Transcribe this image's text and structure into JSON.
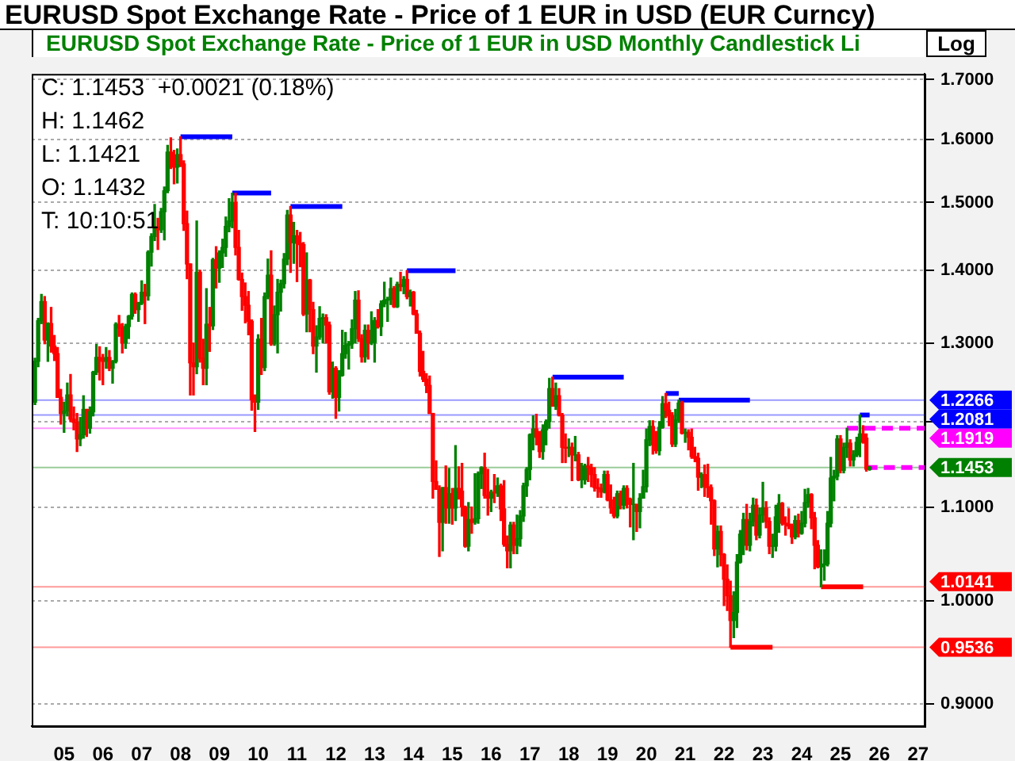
{
  "chart_data": {
    "type": "candlestick",
    "title": "EURUSD Spot Exchange Rate - Price of 1 EUR in USD (EUR Curncy)",
    "subtitle": "EURUSD Spot Exchange Rate - Price of 1 EUR in USD Monthly Candlestick  Li",
    "annotations": [
      "C: 1.1453  +0.0021 (0.18%)",
      "H: 1.1462",
      "L: 1.1421",
      "O: 1.1432",
      "T: 10:10:51",
      "Log"
    ],
    "x": [
      "2004-10",
      "2004-11",
      "2004-12",
      "2005-01",
      "2005-02",
      "2005-03",
      "2005-04",
      "2005-05",
      "2005-06",
      "2005-07",
      "2005-08",
      "2005-09",
      "2005-10",
      "2005-11",
      "2005-12",
      "2006-01",
      "2006-02",
      "2006-03",
      "2006-04",
      "2006-05",
      "2006-06",
      "2006-07",
      "2006-08",
      "2006-09",
      "2006-10",
      "2006-11",
      "2006-12",
      "2007-01",
      "2007-02",
      "2007-03",
      "2007-04",
      "2007-05",
      "2007-06",
      "2007-07",
      "2007-08",
      "2007-09",
      "2007-10",
      "2007-11",
      "2007-12",
      "2008-01",
      "2008-02",
      "2008-03",
      "2008-04",
      "2008-05",
      "2008-06",
      "2008-07",
      "2008-08",
      "2008-09",
      "2008-10",
      "2008-11",
      "2008-12",
      "2009-01",
      "2009-02",
      "2009-03",
      "2009-04",
      "2009-05",
      "2009-06",
      "2009-07",
      "2009-08",
      "2009-09",
      "2009-10",
      "2009-11",
      "2009-12",
      "2010-01",
      "2010-02",
      "2010-03",
      "2010-04",
      "2010-05",
      "2010-06",
      "2010-07",
      "2010-08",
      "2010-09",
      "2010-10",
      "2010-11",
      "2010-12",
      "2011-01",
      "2011-02",
      "2011-03",
      "2011-04",
      "2011-05",
      "2011-06",
      "2011-07",
      "2011-08",
      "2011-09",
      "2011-10",
      "2011-11",
      "2011-12",
      "2012-01",
      "2012-02",
      "2012-03",
      "2012-04",
      "2012-05",
      "2012-06",
      "2012-07",
      "2012-08",
      "2012-09",
      "2012-10",
      "2012-11",
      "2012-12",
      "2013-01",
      "2013-02",
      "2013-03",
      "2013-04",
      "2013-05",
      "2013-06",
      "2013-07",
      "2013-08",
      "2013-09",
      "2013-10",
      "2013-11",
      "2013-12",
      "2014-01",
      "2014-02",
      "2014-03",
      "2014-04",
      "2014-05",
      "2014-06",
      "2014-07",
      "2014-08",
      "2014-09",
      "2014-10",
      "2014-11",
      "2014-12",
      "2015-01",
      "2015-02",
      "2015-03",
      "2015-04",
      "2015-05",
      "2015-06",
      "2015-07",
      "2015-08",
      "2015-09",
      "2015-10",
      "2015-11",
      "2015-12",
      "2016-01",
      "2016-02",
      "2016-03",
      "2016-04",
      "2016-05",
      "2016-06",
      "2016-07",
      "2016-08",
      "2016-09",
      "2016-10",
      "2016-11",
      "2016-12",
      "2017-01",
      "2017-02",
      "2017-03",
      "2017-04",
      "2017-05",
      "2017-06",
      "2017-07",
      "2017-08",
      "2017-09",
      "2017-10",
      "2017-11",
      "2017-12",
      "2018-01",
      "2018-02",
      "2018-03",
      "2018-04",
      "2018-05",
      "2018-06",
      "2018-07",
      "2018-08",
      "2018-09",
      "2018-10",
      "2018-11",
      "2018-12",
      "2019-01",
      "2019-02",
      "2019-03",
      "2019-04",
      "2019-05",
      "2019-06",
      "2019-07",
      "2019-08",
      "2019-09",
      "2019-10",
      "2019-11",
      "2019-12",
      "2020-01",
      "2020-02",
      "2020-03",
      "2020-04",
      "2020-05",
      "2020-06",
      "2020-07",
      "2020-08",
      "2020-09",
      "2020-10",
      "2020-11",
      "2020-12",
      "2021-01",
      "2021-02",
      "2021-03",
      "2021-04",
      "2021-05",
      "2021-06",
      "2021-07",
      "2021-08",
      "2021-09",
      "2021-10",
      "2021-11",
      "2021-12",
      "2022-01",
      "2022-02",
      "2022-03",
      "2022-04",
      "2022-05",
      "2022-06",
      "2022-07",
      "2022-08",
      "2022-09",
      "2022-10",
      "2022-11",
      "2022-12",
      "2023-01",
      "2023-02",
      "2023-03",
      "2023-04",
      "2023-05",
      "2023-06",
      "2023-07",
      "2023-08",
      "2023-09",
      "2023-10",
      "2023-11",
      "2023-12",
      "2024-01",
      "2024-02",
      "2024-03",
      "2024-04",
      "2024-05",
      "2024-06",
      "2024-07",
      "2024-08",
      "2024-09",
      "2024-10",
      "2024-11",
      "2024-12",
      "2025-01",
      "2025-02",
      "2025-03",
      "2025-04",
      "2025-05",
      "2025-06",
      "2025-07",
      "2025-08",
      "2025-09",
      "2025-10",
      "2025-11",
      "2025-12",
      "2026-01",
      "2026-02",
      "2026-03",
      "2026-04"
    ],
    "ohlc": [
      [
        1.224,
        1.28,
        1.221,
        1.276
      ],
      [
        1.276,
        1.333,
        1.269,
        1.33
      ],
      [
        1.33,
        1.366,
        1.326,
        1.356
      ],
      [
        1.356,
        1.363,
        1.299,
        1.304
      ],
      [
        1.304,
        1.327,
        1.276,
        1.326
      ],
      [
        1.326,
        1.348,
        1.288,
        1.296
      ],
      [
        1.296,
        1.31,
        1.277,
        1.286
      ],
      [
        1.286,
        1.294,
        1.23,
        1.23
      ],
      [
        1.23,
        1.24,
        1.197,
        1.21
      ],
      [
        1.21,
        1.224,
        1.187,
        1.213
      ],
      [
        1.213,
        1.248,
        1.207,
        1.233
      ],
      [
        1.233,
        1.259,
        1.2,
        1.203
      ],
      [
        1.203,
        1.218,
        1.19,
        1.199
      ],
      [
        1.199,
        1.21,
        1.164,
        1.179
      ],
      [
        1.179,
        1.205,
        1.171,
        1.184
      ],
      [
        1.184,
        1.232,
        1.18,
        1.215
      ],
      [
        1.215,
        1.215,
        1.182,
        1.192
      ],
      [
        1.192,
        1.218,
        1.186,
        1.212
      ],
      [
        1.212,
        1.263,
        1.207,
        1.262
      ],
      [
        1.262,
        1.298,
        1.259,
        1.281
      ],
      [
        1.281,
        1.295,
        1.252,
        1.279
      ],
      [
        1.279,
        1.285,
        1.246,
        1.276
      ],
      [
        1.276,
        1.294,
        1.267,
        1.281
      ],
      [
        1.281,
        1.29,
        1.264,
        1.267
      ],
      [
        1.267,
        1.277,
        1.248,
        1.276
      ],
      [
        1.276,
        1.327,
        1.274,
        1.325
      ],
      [
        1.325,
        1.337,
        1.309,
        1.32
      ],
      [
        1.32,
        1.326,
        1.287,
        1.3
      ],
      [
        1.3,
        1.325,
        1.293,
        1.322
      ],
      [
        1.322,
        1.337,
        1.306,
        1.336
      ],
      [
        1.336,
        1.368,
        1.332,
        1.366
      ],
      [
        1.366,
        1.368,
        1.34,
        1.345
      ],
      [
        1.345,
        1.355,
        1.329,
        1.354
      ],
      [
        1.354,
        1.385,
        1.352,
        1.369
      ],
      [
        1.369,
        1.38,
        1.326,
        1.364
      ],
      [
        1.364,
        1.428,
        1.358,
        1.426
      ],
      [
        1.426,
        1.453,
        1.406,
        1.449
      ],
      [
        1.449,
        1.497,
        1.443,
        1.463
      ],
      [
        1.463,
        1.476,
        1.43,
        1.459
      ],
      [
        1.459,
        1.491,
        1.455,
        1.486
      ],
      [
        1.486,
        1.524,
        1.444,
        1.518
      ],
      [
        1.518,
        1.59,
        1.515,
        1.579
      ],
      [
        1.579,
        1.602,
        1.553,
        1.56
      ],
      [
        1.56,
        1.582,
        1.529,
        1.555
      ],
      [
        1.555,
        1.584,
        1.53,
        1.575
      ],
      [
        1.575,
        1.6038,
        1.556,
        1.56
      ],
      [
        1.56,
        1.565,
        1.458,
        1.468
      ],
      [
        1.468,
        1.487,
        1.388,
        1.409
      ],
      [
        1.409,
        1.409,
        1.233,
        1.274
      ],
      [
        1.274,
        1.3,
        1.233,
        1.269
      ],
      [
        1.269,
        1.472,
        1.26,
        1.397
      ],
      [
        1.397,
        1.4,
        1.275,
        1.28
      ],
      [
        1.28,
        1.305,
        1.246,
        1.267
      ],
      [
        1.267,
        1.374,
        1.246,
        1.325
      ],
      [
        1.325,
        1.348,
        1.289,
        1.323
      ],
      [
        1.323,
        1.417,
        1.318,
        1.415
      ],
      [
        1.415,
        1.434,
        1.375,
        1.403
      ],
      [
        1.403,
        1.428,
        1.383,
        1.425
      ],
      [
        1.425,
        1.445,
        1.404,
        1.433
      ],
      [
        1.433,
        1.478,
        1.42,
        1.464
      ],
      [
        1.464,
        1.506,
        1.456,
        1.472
      ],
      [
        1.472,
        1.5145,
        1.462,
        1.5
      ],
      [
        1.5,
        1.514,
        1.422,
        1.433
      ],
      [
        1.433,
        1.458,
        1.386,
        1.387
      ],
      [
        1.387,
        1.396,
        1.344,
        1.363
      ],
      [
        1.363,
        1.382,
        1.327,
        1.351
      ],
      [
        1.351,
        1.37,
        1.311,
        1.329
      ],
      [
        1.329,
        1.331,
        1.214,
        1.227
      ],
      [
        1.227,
        1.233,
        1.188,
        1.224
      ],
      [
        1.224,
        1.311,
        1.215,
        1.305
      ],
      [
        1.305,
        1.333,
        1.259,
        1.268
      ],
      [
        1.268,
        1.368,
        1.264,
        1.363
      ],
      [
        1.363,
        1.416,
        1.36,
        1.393
      ],
      [
        1.393,
        1.428,
        1.297,
        1.299
      ],
      [
        1.299,
        1.35,
        1.297,
        1.338
      ],
      [
        1.338,
        1.387,
        1.287,
        1.369
      ],
      [
        1.369,
        1.386,
        1.343,
        1.381
      ],
      [
        1.381,
        1.424,
        1.375,
        1.416
      ],
      [
        1.416,
        1.488,
        1.408,
        1.481
      ],
      [
        1.481,
        1.494,
        1.397,
        1.44
      ],
      [
        1.44,
        1.47,
        1.41,
        1.45
      ],
      [
        1.45,
        1.458,
        1.384,
        1.439
      ],
      [
        1.439,
        1.455,
        1.405,
        1.437
      ],
      [
        1.437,
        1.44,
        1.337,
        1.339
      ],
      [
        1.339,
        1.425,
        1.315,
        1.386
      ],
      [
        1.386,
        1.387,
        1.315,
        1.345
      ],
      [
        1.345,
        1.355,
        1.286,
        1.296
      ],
      [
        1.296,
        1.323,
        1.262,
        1.308
      ],
      [
        1.308,
        1.349,
        1.305,
        1.333
      ],
      [
        1.333,
        1.339,
        1.3,
        1.334
      ],
      [
        1.334,
        1.338,
        1.3,
        1.324
      ],
      [
        1.324,
        1.328,
        1.234,
        1.237
      ],
      [
        1.237,
        1.275,
        1.229,
        1.267
      ],
      [
        1.267,
        1.269,
        1.204,
        1.23
      ],
      [
        1.23,
        1.264,
        1.213,
        1.258
      ],
      [
        1.258,
        1.317,
        1.257,
        1.286
      ],
      [
        1.286,
        1.314,
        1.28,
        1.297
      ],
      [
        1.297,
        1.302,
        1.266,
        1.299
      ],
      [
        1.299,
        1.331,
        1.293,
        1.319
      ],
      [
        1.319,
        1.37,
        1.3,
        1.358
      ],
      [
        1.358,
        1.371,
        1.302,
        1.306
      ],
      [
        1.306,
        1.311,
        1.275,
        1.282
      ],
      [
        1.282,
        1.324,
        1.275,
        1.317
      ],
      [
        1.317,
        1.324,
        1.279,
        1.3
      ],
      [
        1.3,
        1.342,
        1.298,
        1.301
      ],
      [
        1.301,
        1.334,
        1.275,
        1.33
      ],
      [
        1.33,
        1.345,
        1.32,
        1.322
      ],
      [
        1.322,
        1.357,
        1.31,
        1.353
      ],
      [
        1.353,
        1.383,
        1.349,
        1.358
      ],
      [
        1.358,
        1.362,
        1.329,
        1.359
      ],
      [
        1.359,
        1.389,
        1.352,
        1.374
      ],
      [
        1.374,
        1.377,
        1.348,
        1.349
      ],
      [
        1.349,
        1.383,
        1.348,
        1.38
      ],
      [
        1.38,
        1.397,
        1.371,
        1.377
      ],
      [
        1.377,
        1.391,
        1.367,
        1.387
      ],
      [
        1.387,
        1.3993,
        1.36,
        1.363
      ],
      [
        1.363,
        1.372,
        1.35,
        1.369
      ],
      [
        1.369,
        1.37,
        1.338,
        1.339
      ],
      [
        1.339,
        1.344,
        1.313,
        1.313
      ],
      [
        1.313,
        1.316,
        1.257,
        1.263
      ],
      [
        1.263,
        1.289,
        1.25,
        1.253
      ],
      [
        1.253,
        1.26,
        1.236,
        1.245
      ],
      [
        1.245,
        1.257,
        1.21,
        1.21
      ],
      [
        1.21,
        1.21,
        1.11,
        1.129
      ],
      [
        1.129,
        1.153,
        1.12,
        1.12
      ],
      [
        1.12,
        1.124,
        1.046,
        1.083
      ],
      [
        1.083,
        1.122,
        1.052,
        1.122
      ],
      [
        1.122,
        1.147,
        1.082,
        1.099
      ],
      [
        1.099,
        1.144,
        1.082,
        1.115
      ],
      [
        1.115,
        1.121,
        1.081,
        1.099
      ],
      [
        1.099,
        1.171,
        1.085,
        1.121
      ],
      [
        1.121,
        1.146,
        1.109,
        1.118
      ],
      [
        1.118,
        1.15,
        1.09,
        1.1
      ],
      [
        1.1,
        1.101,
        1.056,
        1.057
      ],
      [
        1.057,
        1.105,
        1.052,
        1.086
      ],
      [
        1.086,
        1.1,
        1.071,
        1.083
      ],
      [
        1.083,
        1.138,
        1.081,
        1.087
      ],
      [
        1.087,
        1.14,
        1.082,
        1.138
      ],
      [
        1.138,
        1.146,
        1.121,
        1.145
      ],
      [
        1.145,
        1.162,
        1.11,
        1.113
      ],
      [
        1.113,
        1.143,
        1.091,
        1.11
      ],
      [
        1.11,
        1.119,
        1.095,
        1.117
      ],
      [
        1.117,
        1.137,
        1.105,
        1.116
      ],
      [
        1.116,
        1.133,
        1.112,
        1.124
      ],
      [
        1.124,
        1.126,
        1.085,
        1.098
      ],
      [
        1.098,
        1.13,
        1.057,
        1.059
      ],
      [
        1.059,
        1.068,
        1.034,
        1.052
      ],
      [
        1.052,
        1.083,
        1.034,
        1.08
      ],
      [
        1.08,
        1.083,
        1.049,
        1.058
      ],
      [
        1.058,
        1.091,
        1.049,
        1.065
      ],
      [
        1.065,
        1.096,
        1.057,
        1.09
      ],
      [
        1.09,
        1.127,
        1.084,
        1.124
      ],
      [
        1.124,
        1.145,
        1.112,
        1.143
      ],
      [
        1.143,
        1.185,
        1.131,
        1.184
      ],
      [
        1.184,
        1.207,
        1.166,
        1.191
      ],
      [
        1.191,
        1.209,
        1.172,
        1.181
      ],
      [
        1.181,
        1.188,
        1.157,
        1.164
      ],
      [
        1.164,
        1.196,
        1.155,
        1.19
      ],
      [
        1.19,
        1.202,
        1.172,
        1.2
      ],
      [
        1.2,
        1.254,
        1.192,
        1.241
      ],
      [
        1.241,
        1.2556,
        1.219,
        1.219
      ],
      [
        1.219,
        1.248,
        1.215,
        1.232
      ],
      [
        1.232,
        1.241,
        1.207,
        1.208
      ],
      [
        1.208,
        1.21,
        1.151,
        1.169
      ],
      [
        1.169,
        1.185,
        1.151,
        1.168
      ],
      [
        1.168,
        1.179,
        1.158,
        1.169
      ],
      [
        1.169,
        1.174,
        1.13,
        1.16
      ],
      [
        1.16,
        1.182,
        1.153,
        1.16
      ],
      [
        1.16,
        1.163,
        1.13,
        1.131
      ],
      [
        1.131,
        1.15,
        1.122,
        1.131
      ],
      [
        1.131,
        1.149,
        1.126,
        1.147
      ],
      [
        1.147,
        1.157,
        1.129,
        1.145
      ],
      [
        1.145,
        1.149,
        1.123,
        1.137
      ],
      [
        1.137,
        1.145,
        1.118,
        1.122
      ],
      [
        1.122,
        1.132,
        1.111,
        1.121
      ],
      [
        1.121,
        1.126,
        1.111,
        1.117
      ],
      [
        1.117,
        1.141,
        1.116,
        1.137
      ],
      [
        1.137,
        1.141,
        1.107,
        1.108
      ],
      [
        1.108,
        1.125,
        1.093,
        1.099
      ],
      [
        1.099,
        1.111,
        1.088,
        1.09
      ],
      [
        1.09,
        1.118,
        1.088,
        1.115
      ],
      [
        1.115,
        1.118,
        1.098,
        1.102
      ],
      [
        1.102,
        1.124,
        1.098,
        1.121
      ],
      [
        1.121,
        1.124,
        1.099,
        1.109
      ],
      [
        1.109,
        1.11,
        1.078,
        1.103
      ],
      [
        1.103,
        1.15,
        1.064,
        1.103
      ],
      [
        1.103,
        1.103,
        1.073,
        1.095
      ],
      [
        1.095,
        1.115,
        1.077,
        1.11
      ],
      [
        1.11,
        1.142,
        1.11,
        1.123
      ],
      [
        1.123,
        1.191,
        1.117,
        1.178
      ],
      [
        1.178,
        1.201,
        1.171,
        1.194
      ],
      [
        1.194,
        1.201,
        1.161,
        1.172
      ],
      [
        1.172,
        1.188,
        1.162,
        1.165
      ],
      [
        1.165,
        1.2,
        1.16,
        1.193
      ],
      [
        1.193,
        1.231,
        1.192,
        1.222
      ],
      [
        1.222,
        1.2349,
        1.205,
        1.214
      ],
      [
        1.214,
        1.224,
        1.195,
        1.207
      ],
      [
        1.207,
        1.211,
        1.17,
        1.173
      ],
      [
        1.173,
        1.215,
        1.17,
        1.202
      ],
      [
        1.202,
        1.2266,
        1.199,
        1.223
      ],
      [
        1.223,
        1.225,
        1.185,
        1.186
      ],
      [
        1.186,
        1.191,
        1.175,
        1.187
      ],
      [
        1.187,
        1.19,
        1.166,
        1.181
      ],
      [
        1.181,
        1.191,
        1.156,
        1.158
      ],
      [
        1.158,
        1.169,
        1.152,
        1.156
      ],
      [
        1.156,
        1.162,
        1.119,
        1.134
      ],
      [
        1.134,
        1.139,
        1.122,
        1.137
      ],
      [
        1.137,
        1.148,
        1.112,
        1.123
      ],
      [
        1.123,
        1.149,
        1.111,
        1.122
      ],
      [
        1.122,
        1.125,
        1.081,
        1.107
      ],
      [
        1.107,
        1.108,
        1.047,
        1.054
      ],
      [
        1.054,
        1.079,
        1.035,
        1.073
      ],
      [
        1.073,
        1.079,
        1.036,
        1.048
      ],
      [
        1.048,
        1.049,
        0.995,
        1.022
      ],
      [
        1.022,
        1.037,
        0.99,
        1.005
      ],
      [
        1.005,
        1.02,
        0.9536,
        0.98
      ],
      [
        0.98,
        1.009,
        0.963,
        0.988
      ],
      [
        0.988,
        1.048,
        0.973,
        1.04
      ],
      [
        1.04,
        1.074,
        1.039,
        1.07
      ],
      [
        1.07,
        1.093,
        1.048,
        1.086
      ],
      [
        1.086,
        1.103,
        1.053,
        1.058
      ],
      [
        1.058,
        1.093,
        1.052,
        1.084
      ],
      [
        1.084,
        1.11,
        1.079,
        1.102
      ],
      [
        1.102,
        1.109,
        1.064,
        1.069
      ],
      [
        1.069,
        1.099,
        1.066,
        1.091
      ],
      [
        1.091,
        1.128,
        1.083,
        1.099
      ],
      [
        1.099,
        1.106,
        1.077,
        1.084
      ],
      [
        1.084,
        1.088,
        1.049,
        1.057
      ],
      [
        1.057,
        1.07,
        1.045,
        1.057
      ],
      [
        1.057,
        1.102,
        1.052,
        1.089
      ],
      [
        1.089,
        1.114,
        1.072,
        1.104
      ],
      [
        1.104,
        1.105,
        1.08,
        1.082
      ],
      [
        1.082,
        1.089,
        1.069,
        1.081
      ],
      [
        1.081,
        1.098,
        1.076,
        1.079
      ],
      [
        1.079,
        1.081,
        1.06,
        1.067
      ],
      [
        1.067,
        1.09,
        1.065,
        1.085
      ],
      [
        1.085,
        1.092,
        1.067,
        1.071
      ],
      [
        1.071,
        1.095,
        1.07,
        1.082
      ],
      [
        1.082,
        1.12,
        1.078,
        1.105
      ],
      [
        1.105,
        1.121,
        1.1,
        1.114
      ],
      [
        1.114,
        1.115,
        1.076,
        1.088
      ],
      [
        1.088,
        1.094,
        1.033,
        1.058
      ],
      [
        1.058,
        1.063,
        1.034,
        1.035
      ],
      [
        1.035,
        1.053,
        1.0141,
        1.037
      ],
      [
        1.037,
        1.053,
        1.021,
        1.038
      ],
      [
        1.038,
        1.095,
        1.036,
        1.082
      ],
      [
        1.082,
        1.157,
        1.078,
        1.133
      ],
      [
        1.133,
        1.142,
        1.107,
        1.135
      ],
      [
        1.135,
        1.183,
        1.131,
        1.179
      ],
      [
        1.179,
        1.183,
        1.139,
        1.142
      ],
      [
        1.142,
        1.174,
        1.139,
        1.169
      ],
      [
        1.169,
        1.1919,
        1.157,
        1.174
      ],
      [
        1.174,
        1.178,
        1.147,
        1.154
      ],
      [
        1.154,
        1.165,
        1.147,
        1.16
      ],
      [
        1.16,
        1.181,
        1.158,
        1.175
      ],
      [
        1.175,
        1.2081,
        1.158,
        1.185
      ],
      [
        1.185,
        1.195,
        1.174,
        1.18
      ],
      [
        1.18,
        1.185,
        1.141,
        1.1432
      ],
      [
        1.1432,
        1.1462,
        1.1421,
        1.1453
      ]
    ],
    "series": [
      {
        "type": "line",
        "x": [
          "2008-07",
          "2009-11"
        ],
        "values": [
          1.6038,
          1.6038
        ],
        "color": "#0000ff",
        "line_style": "solid"
      },
      {
        "type": "line",
        "x": [
          "2009-11",
          "2010-11"
        ],
        "values": [
          1.5145,
          1.5145
        ],
        "color": "#0000ff",
        "line_style": "solid"
      },
      {
        "type": "line",
        "x": [
          "2011-05",
          "2012-09"
        ],
        "values": [
          1.494,
          1.494
        ],
        "color": "#0000ff",
        "line_style": "solid"
      },
      {
        "type": "line",
        "x": [
          "2014-05",
          "2015-08"
        ],
        "values": [
          1.3993,
          1.3993
        ],
        "color": "#0000ff",
        "line_style": "solid"
      },
      {
        "type": "line",
        "x": [
          "2018-02",
          "2019-12"
        ],
        "values": [
          1.2556,
          1.2556
        ],
        "color": "#0000ff",
        "line_style": "solid"
      },
      {
        "type": "line",
        "x": [
          "2021-01",
          "2021-05"
        ],
        "values": [
          1.2349,
          1.2349
        ],
        "color": "#0000ff",
        "line_style": "solid"
      },
      {
        "type": "line",
        "x": [
          "2021-05",
          "2023-03"
        ],
        "values": [
          1.2266,
          1.2266
        ],
        "color": "#0000ff",
        "line_style": "solid"
      },
      {
        "type": "line",
        "x": [
          "2026-01",
          "2026-04"
        ],
        "values": [
          1.2081,
          1.2081
        ],
        "color": "#0000ff",
        "line_style": "solid"
      },
      {
        "type": "line",
        "x": [
          "2022-09",
          "2023-10"
        ],
        "values": [
          0.9536,
          0.9536
        ],
        "color": "#ff0000",
        "line_style": "solid"
      },
      {
        "type": "line",
        "x": [
          "2025-01",
          "2026-02"
        ],
        "values": [
          1.0141,
          1.0141
        ],
        "color": "#ff0000",
        "line_style": "solid"
      },
      {
        "type": "line",
        "x": [
          "2025-09",
          "2027-09"
        ],
        "values": [
          1.1919,
          1.1919
        ],
        "color": "#ff00ff",
        "line_style": "dashed"
      },
      {
        "type": "line",
        "x": [
          "2026-03",
          "2027-09"
        ],
        "values": [
          1.1453,
          1.1453
        ],
        "color": "#ff00ff",
        "line_style": "dashed"
      }
    ],
    "ref_lines": [
      {
        "axis": "y",
        "value": 1.2266,
        "label": "1.2266",
        "color": "#0000ff"
      },
      {
        "axis": "y",
        "value": 1.2081,
        "label": "1.2081",
        "color": "#0000ff"
      },
      {
        "axis": "y",
        "value": 1.1919,
        "label": "1.1919",
        "color": "#ff00ff"
      },
      {
        "axis": "y",
        "value": 1.1453,
        "label": "1.1453",
        "color": "#008000"
      },
      {
        "axis": "y",
        "value": 1.0141,
        "label": "1.0141",
        "color": "#ff0000"
      },
      {
        "axis": "y",
        "value": 0.9536,
        "label": "0.9536",
        "color": "#ff0000"
      }
    ],
    "xlim": [
      "2004-09",
      "2027-09"
    ],
    "xticks": [
      {
        "value": "2005-07",
        "label": "05"
      },
      {
        "value": "2006-07",
        "label": "06"
      },
      {
        "value": "2007-07",
        "label": "07"
      },
      {
        "value": "2008-07",
        "label": "08"
      },
      {
        "value": "2009-07",
        "label": "09"
      },
      {
        "value": "2010-07",
        "label": "10"
      },
      {
        "value": "2011-07",
        "label": "11"
      },
      {
        "value": "2012-07",
        "label": "12"
      },
      {
        "value": "2013-07",
        "label": "13"
      },
      {
        "value": "2014-07",
        "label": "14"
      },
      {
        "value": "2015-07",
        "label": "15"
      },
      {
        "value": "2016-07",
        "label": "16"
      },
      {
        "value": "2017-07",
        "label": "17"
      },
      {
        "value": "2018-07",
        "label": "18"
      },
      {
        "value": "2019-07",
        "label": "19"
      },
      {
        "value": "2020-07",
        "label": "20"
      },
      {
        "value": "2021-07",
        "label": "21"
      },
      {
        "value": "2022-07",
        "label": "22"
      },
      {
        "value": "2023-07",
        "label": "23"
      },
      {
        "value": "2024-07",
        "label": "24"
      },
      {
        "value": "2025-07",
        "label": "25"
      },
      {
        "value": "2026-07",
        "label": "26"
      },
      {
        "value": "2027-07",
        "label": "27"
      }
    ],
    "ylim": [
      0.88,
      1.71
    ],
    "yticks": [
      {
        "value": 0.9,
        "label": "0.9000"
      },
      {
        "value": 1.0,
        "label": "1.0000"
      },
      {
        "value": 1.1,
        "label": "1.1000"
      },
      {
        "value": 1.2,
        "label": null
      },
      {
        "value": 1.3,
        "label": "1.3000"
      },
      {
        "value": 1.4,
        "label": "1.4000"
      },
      {
        "value": 1.5,
        "label": "1.5000"
      },
      {
        "value": 1.6,
        "label": "1.6000"
      },
      {
        "value": 1.7,
        "label": "1.7000"
      }
    ],
    "log": true,
    "grid": "y"
  }
}
